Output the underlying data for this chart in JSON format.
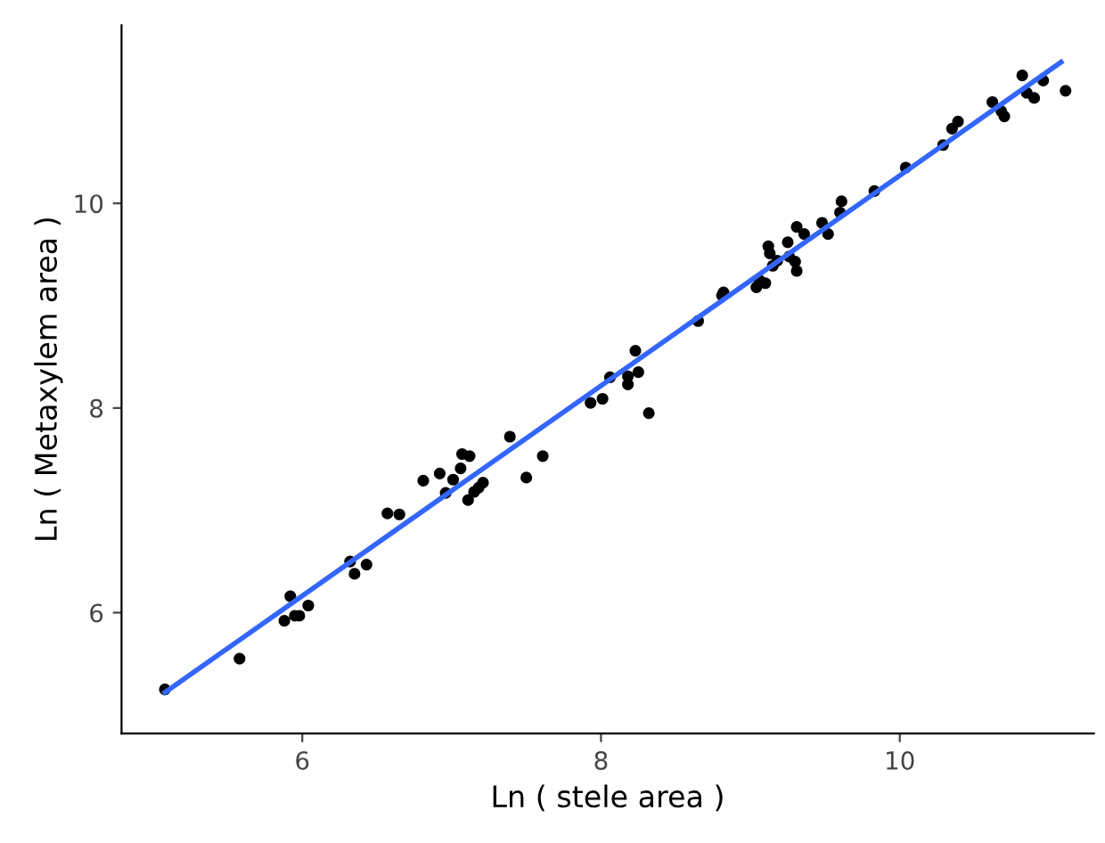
{
  "chart_data": {
    "type": "scatter",
    "xlabel": "Ln ( stele area )",
    "ylabel": "Ln ( Metaxylem area )",
    "xlim": [
      4.79,
      11.3
    ],
    "ylim": [
      4.82,
      11.74
    ],
    "xticks": [
      6,
      8,
      10
    ],
    "yticks": [
      6,
      8,
      10
    ],
    "grid": false,
    "marker": "circle",
    "series": [
      {
        "color": "#000000",
        "x": [
          5.08,
          5.58,
          5.88,
          5.92,
          5.95,
          5.98,
          6.04,
          6.32,
          6.35,
          6.43,
          6.57,
          6.65,
          6.81,
          6.92,
          6.96,
          7.01,
          7.06,
          7.07,
          7.12,
          7.11,
          7.15,
          7.18,
          7.21,
          7.39,
          7.5,
          7.61,
          7.93,
          8.01,
          8.06,
          8.18,
          8.23,
          8.25,
          8.18,
          8.32,
          8.65,
          8.81,
          8.82,
          9.04,
          9.06,
          9.1,
          9.12,
          9.13,
          9.15,
          9.18,
          9.25,
          9.26,
          9.3,
          9.31,
          9.31,
          9.36,
          9.48,
          9.52,
          9.6,
          9.61,
          9.83,
          10.04,
          10.29,
          10.35,
          10.39,
          10.62,
          10.68,
          10.7,
          10.82,
          10.85,
          10.9,
          10.96,
          11.11
        ],
        "values": [
          5.25,
          5.55,
          5.92,
          6.16,
          5.97,
          5.97,
          6.07,
          6.5,
          6.38,
          6.47,
          6.97,
          6.96,
          7.29,
          7.36,
          7.17,
          7.3,
          7.41,
          7.55,
          7.53,
          7.1,
          7.18,
          7.22,
          7.27,
          7.72,
          7.32,
          7.53,
          8.05,
          8.09,
          8.3,
          8.23,
          8.56,
          8.35,
          8.31,
          7.95,
          8.85,
          9.1,
          9.13,
          9.18,
          9.25,
          9.22,
          9.58,
          9.51,
          9.39,
          9.44,
          9.62,
          9.48,
          9.43,
          9.77,
          9.34,
          9.7,
          9.81,
          9.7,
          9.91,
          10.02,
          10.12,
          10.35,
          10.57,
          10.73,
          10.8,
          10.99,
          10.9,
          10.85,
          11.25,
          11.08,
          11.03,
          11.2,
          11.1
        ]
      },
      {
        "type": "line",
        "color": "#3366ff",
        "marker": "none",
        "x": [
          5.08,
          11.08
        ],
        "values": [
          5.22,
          11.38
        ]
      }
    ]
  }
}
